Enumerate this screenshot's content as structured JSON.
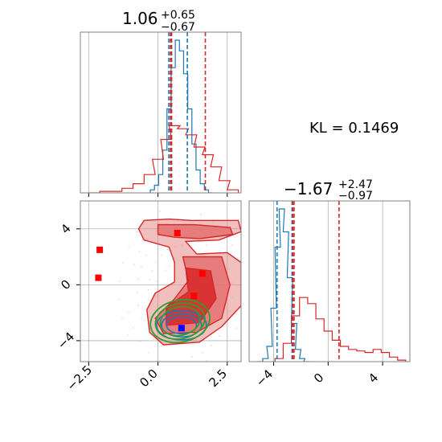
{
  "chart_data": {
    "type": "corner",
    "colors": {
      "blue": "#1f77b4",
      "red": "#d62728",
      "green": "#2ca02c",
      "marker_red": "#ff0000",
      "marker_blue": "#0000ff"
    },
    "kl_label": "KL = 0.1469",
    "panels": [
      {
        "id": "param1-hist",
        "type": "histogram",
        "title": {
          "main": "1.06",
          "sup": "+0.65",
          "sub": "−0.67"
        },
        "xlim": [
          -2.8,
          3.0
        ],
        "grid": true,
        "series": [
          {
            "name": "",
            "color": "#1f77b4",
            "x": [
              -0.2,
              -0.05,
              0.1,
              0.25,
              0.4,
              0.55,
              0.7,
              0.85,
              1.0,
              1.15,
              1.3,
              1.45,
              1.6,
              1.75,
              1.9
            ],
            "y": [
              0.02,
              0.05,
              0.12,
              0.28,
              0.55,
              0.82,
              1.0,
              0.93,
              0.78,
              0.55,
              0.32,
              0.15,
              0.06,
              0.02,
              0.0
            ]
          },
          {
            "name": "",
            "color": "#d62728",
            "x": [
              -2.3,
              -1.9,
              -1.5,
              -1.1,
              -0.7,
              -0.3,
              0.0,
              0.3,
              0.6,
              0.9,
              1.2,
              1.5,
              1.8,
              2.1,
              2.4,
              2.7
            ],
            "y": [
              0.0,
              0.01,
              0.01,
              0.03,
              0.06,
              0.12,
              0.22,
              0.35,
              0.44,
              0.42,
              0.38,
              0.3,
              0.25,
              0.17,
              0.08,
              0.02
            ]
          }
        ],
        "vlines": [
          {
            "x": 0.39,
            "color": "#1f77b4"
          },
          {
            "x": 1.06,
            "color": "#1f77b4"
          },
          {
            "x": 0.49,
            "color": "#1f77b4"
          },
          {
            "x": 0.45,
            "color": "#d62728"
          },
          {
            "x": 0.49,
            "color": "#d62728"
          },
          {
            "x": 1.71,
            "color": "#d62728"
          }
        ]
      },
      {
        "id": "param2-hist",
        "type": "histogram",
        "title": {
          "main": "−1.67",
          "sup": "+2.47",
          "sub": "−0.97"
        },
        "xlim": [
          -5.8,
          6.0
        ],
        "xticks": [
          -4,
          0,
          4
        ],
        "xticklabels": [
          "−4",
          "0",
          "4"
        ],
        "grid": true,
        "series": [
          {
            "name": "",
            "color": "#1f77b4",
            "x": [
              -5.0,
              -4.6,
              -4.3,
              -4.0,
              -3.7,
              -3.4,
              -3.1,
              -2.8,
              -2.5,
              -2.2,
              -1.9,
              -1.6
            ],
            "y": [
              0.0,
              0.02,
              0.1,
              0.35,
              0.75,
              1.0,
              0.85,
              0.55,
              0.25,
              0.08,
              0.02,
              0.0
            ]
          },
          {
            "name": "",
            "color": "#d62728",
            "x": [
              -3.6,
              -3.0,
              -2.4,
              -1.8,
              -1.2,
              -0.6,
              0.0,
              0.6,
              1.2,
              1.8,
              2.4,
              3.0,
              3.6,
              4.2,
              4.8,
              5.4
            ],
            "y": [
              0.02,
              0.12,
              0.3,
              0.42,
              0.38,
              0.28,
              0.2,
              0.14,
              0.1,
              0.08,
              0.07,
              0.06,
              0.08,
              0.06,
              0.03,
              0.01
            ]
          }
        ],
        "vlines": [
          {
            "x": -3.75,
            "color": "#1f77b4"
          },
          {
            "x": -2.65,
            "color": "#1f77b4"
          },
          {
            "x": -2.6,
            "color": "#d62728"
          },
          {
            "x": -2.5,
            "color": "#d62728"
          },
          {
            "x": 0.8,
            "color": "#d62728"
          }
        ]
      },
      {
        "id": "joint-contour",
        "type": "contour",
        "xlim": [
          -2.8,
          3.0
        ],
        "ylim": [
          -5.5,
          6.0
        ],
        "xticks": [
          -2.5,
          0.0,
          2.5
        ],
        "xticklabels": [
          "−2.5",
          "0.0",
          "2.5"
        ],
        "yticks": [
          -4,
          0,
          4
        ],
        "yticklabels": [
          "−4",
          "0",
          "4"
        ],
        "grid": true,
        "red_markers": [
          {
            "x": 0.7,
            "y": 3.7
          },
          {
            "x": -2.1,
            "y": 2.5
          },
          {
            "x": -2.15,
            "y": 0.5
          },
          {
            "x": 1.6,
            "y": 0.8
          },
          {
            "x": 1.3,
            "y": -0.8
          }
        ],
        "blue_marker": {
          "x": 0.85,
          "y": -3.1
        }
      }
    ]
  }
}
